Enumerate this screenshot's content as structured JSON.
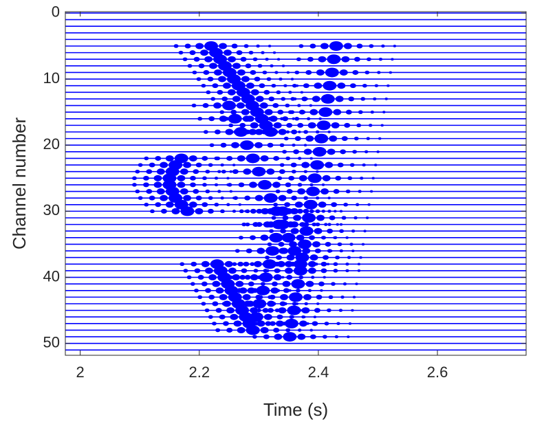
{
  "chart_data": {
    "type": "wiggle",
    "xlabel": "Time (s)",
    "ylabel": "Channel number",
    "xlim": [
      1.975,
      2.749
    ],
    "xticks": [
      2,
      2.2,
      2.4,
      2.6
    ],
    "ylim": [
      -0.2,
      51.8
    ],
    "y_reversed": true,
    "yticks": [
      0,
      10,
      20,
      30,
      40,
      50
    ],
    "color": "#0000ff",
    "channels": [
      0,
      1,
      2,
      3,
      4,
      5,
      6,
      7,
      8,
      9,
      10,
      11,
      12,
      13,
      14,
      15,
      16,
      17,
      18,
      19,
      20,
      21,
      22,
      23,
      24,
      25,
      26,
      27,
      28,
      29,
      30,
      31,
      32,
      33,
      34,
      35,
      36,
      37,
      38,
      39,
      40,
      41,
      42,
      43,
      44,
      45,
      46,
      47,
      48,
      49,
      50,
      51
    ],
    "arrivals": [
      {
        "channels": [
          5,
          6,
          7,
          8,
          9,
          10,
          11,
          12,
          13,
          14,
          15,
          16,
          17,
          18
        ],
        "times": [
          2.22,
          2.228,
          2.235,
          2.243,
          2.251,
          2.258,
          2.266,
          2.274,
          2.282,
          2.289,
          2.297,
          2.305,
          2.312,
          2.32
        ]
      },
      {
        "channels": [
          5,
          7,
          9,
          11,
          13,
          15,
          17,
          19,
          21,
          23,
          25,
          27,
          29,
          31,
          33,
          35,
          37,
          39,
          41,
          43,
          45,
          47,
          49
        ],
        "times": [
          2.43,
          2.426,
          2.423,
          2.419,
          2.416,
          2.412,
          2.409,
          2.405,
          2.402,
          2.398,
          2.394,
          2.391,
          2.387,
          2.384,
          2.38,
          2.377,
          2.373,
          2.37,
          2.366,
          2.362,
          2.359,
          2.355,
          2.352
        ]
      },
      {
        "channels": [
          14,
          16,
          18,
          20,
          22,
          24,
          26,
          28,
          30,
          32,
          34,
          36,
          38
        ],
        "times": [
          2.25,
          2.26,
          2.27,
          2.28,
          2.29,
          2.3,
          2.31,
          2.32,
          2.33,
          2.34,
          2.35,
          2.36,
          2.37
        ]
      },
      {
        "channels": [
          38,
          39,
          40,
          41,
          42,
          43,
          44,
          45,
          46,
          47,
          48
        ],
        "times": [
          2.23,
          2.236,
          2.242,
          2.248,
          2.254,
          2.26,
          2.266,
          2.272,
          2.278,
          2.284,
          2.29
        ]
      },
      {
        "channels": [
          30,
          32,
          34,
          36,
          38,
          40,
          42,
          44,
          46,
          48
        ],
        "times": [
          2.34,
          2.334,
          2.329,
          2.323,
          2.318,
          2.312,
          2.307,
          2.301,
          2.296,
          2.29
        ]
      },
      {
        "channels": [
          22,
          23,
          24,
          25,
          26,
          27,
          28,
          29,
          30
        ],
        "times": [
          2.17,
          2.16,
          2.155,
          2.15,
          2.15,
          2.155,
          2.16,
          2.17,
          2.18
        ]
      }
    ]
  }
}
